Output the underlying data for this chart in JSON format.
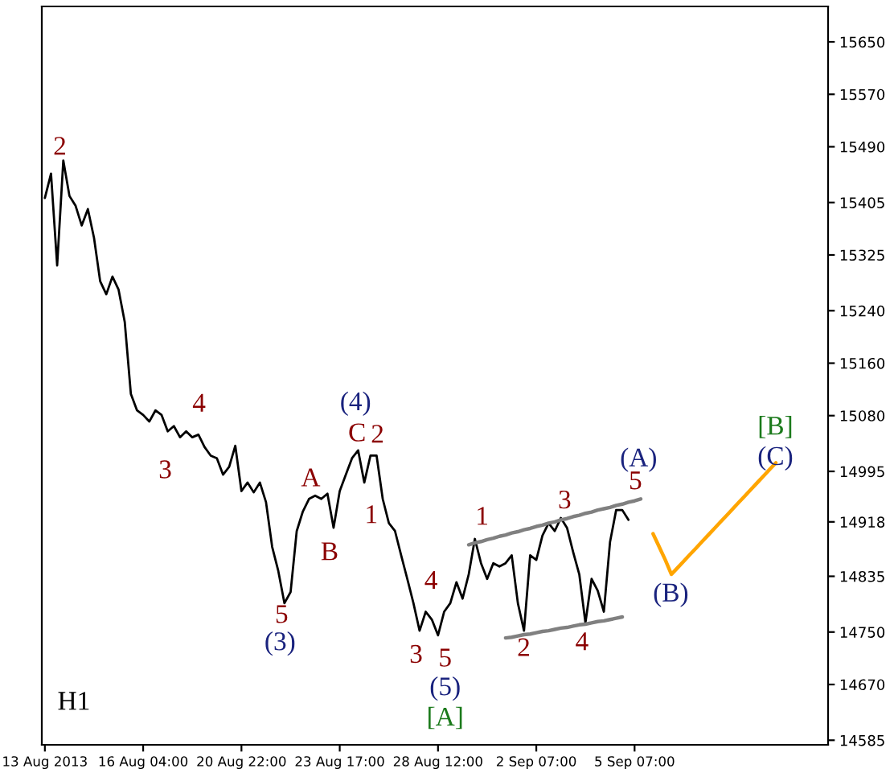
{
  "chart_data": {
    "type": "line",
    "categories": [
      "13 Aug 2013",
      null,
      null,
      null,
      null,
      null,
      null,
      null,
      null,
      null,
      null,
      null,
      null,
      null,
      null,
      null,
      "16 Aug 04:00",
      null,
      null,
      null,
      null,
      null,
      null,
      null,
      null,
      null,
      null,
      null,
      null,
      null,
      null,
      null,
      "20 Aug 22:00",
      null,
      null,
      null,
      null,
      null,
      null,
      null,
      null,
      null,
      null,
      null,
      null,
      null,
      null,
      null,
      "23 Aug 17:00",
      null,
      null,
      null,
      null,
      null,
      null,
      null,
      null,
      null,
      null,
      null,
      null,
      null,
      null,
      null,
      "28 Aug 12:00",
      null,
      null,
      null,
      null,
      null,
      null,
      null,
      null,
      null,
      null,
      null,
      null,
      null,
      null,
      null,
      "2 Sep 07:00",
      null,
      null,
      null,
      null,
      null,
      null,
      null,
      null,
      null,
      null,
      null,
      null,
      null,
      null,
      null,
      "5 Sep 07:00",
      null,
      null,
      null,
      null,
      null,
      null,
      null,
      null,
      null,
      null,
      null,
      null,
      null,
      null,
      null,
      null,
      null,
      null,
      null,
      null,
      null,
      null,
      null,
      null,
      null,
      null,
      null,
      null,
      null,
      null,
      null
    ],
    "ylim": [
      14578,
      15704
    ],
    "yticks": [
      14585,
      14670,
      14750,
      14835,
      14918,
      14995,
      15080,
      15160,
      15240,
      15325,
      15405,
      15490,
      15570,
      15650
    ],
    "grid": false,
    "series": [
      {
        "color": "#000000",
        "values": [
          15412,
          15449,
          15309,
          15469,
          15415,
          15400,
          15370,
          15395,
          15351,
          15285,
          15265,
          15292,
          15272,
          15223,
          15113,
          15088,
          15081,
          15071,
          15088,
          15081,
          15056,
          15064,
          15047,
          15056,
          15047,
          15051,
          15032,
          15019,
          15015,
          14990,
          15002,
          15034,
          14965,
          14978,
          14963,
          14978,
          14948,
          14880,
          14843,
          14794,
          14811,
          14904,
          14934,
          14953,
          14958,
          14953,
          14961,
          14909,
          14965,
          14990,
          15015,
          15027,
          14978,
          15019,
          15019,
          14953,
          14916,
          14904,
          14867,
          14831,
          14794,
          14752,
          14781,
          14769,
          14745,
          14781,
          14794,
          14826,
          14801,
          14838,
          14892,
          14855,
          14831,
          14855,
          14850,
          14855,
          14867,
          14794,
          14752,
          14867,
          14860,
          14897,
          14916,
          14904,
          14924,
          14909,
          14872,
          14838,
          14764,
          14831,
          14813,
          14781,
          14887,
          14936,
          14936,
          14921,
          null,
          null,
          null,
          null,
          null,
          null,
          null,
          null,
          null,
          null,
          null,
          null,
          null,
          null,
          null,
          null,
          null,
          null,
          null,
          null,
          null,
          null,
          null,
          null,
          null,
          null,
          null,
          null,
          null,
          null,
          null,
          null
        ]
      },
      {
        "color": "#808080",
        "values": [
          null,
          null,
          null,
          null,
          null,
          null,
          null,
          null,
          null,
          null,
          null,
          null,
          null,
          null,
          null,
          null,
          null,
          null,
          null,
          null,
          null,
          null,
          null,
          null,
          null,
          null,
          null,
          null,
          null,
          null,
          null,
          null,
          null,
          null,
          null,
          null,
          null,
          null,
          null,
          null,
          null,
          null,
          null,
          null,
          null,
          null,
          null,
          null,
          null,
          null,
          null,
          null,
          null,
          null,
          null,
          null,
          null,
          null,
          null,
          null,
          null,
          null,
          null,
          null,
          null,
          null,
          null,
          null,
          null,
          14883,
          14886,
          14888,
          14891,
          14893,
          14896,
          14898,
          14901,
          14903,
          14906,
          14908,
          14911,
          14913,
          14916,
          14918,
          14921,
          14923,
          14926,
          14928,
          14931,
          14933,
          14936,
          14938,
          14940,
          14943,
          14945,
          14948,
          14950,
          14953,
          null,
          null,
          null,
          null,
          null,
          null,
          null,
          null,
          null,
          null,
          null,
          null,
          null,
          null,
          null,
          null,
          null,
          null,
          null,
          null,
          null,
          null,
          null,
          null,
          null,
          null,
          null,
          null,
          null,
          null
        ]
      },
      {
        "color": "#808080",
        "values": [
          null,
          null,
          null,
          null,
          null,
          null,
          null,
          null,
          null,
          null,
          null,
          null,
          null,
          null,
          null,
          null,
          null,
          null,
          null,
          null,
          null,
          null,
          null,
          null,
          null,
          null,
          null,
          null,
          null,
          null,
          null,
          null,
          null,
          null,
          null,
          null,
          null,
          null,
          null,
          null,
          null,
          null,
          null,
          null,
          null,
          null,
          null,
          null,
          null,
          null,
          null,
          null,
          null,
          null,
          null,
          null,
          null,
          null,
          null,
          null,
          null,
          null,
          null,
          null,
          null,
          null,
          null,
          null,
          null,
          null,
          null,
          null,
          null,
          null,
          null,
          14741,
          14742,
          14744,
          14746,
          14747,
          14749,
          14751,
          14752,
          14754,
          14756,
          14757,
          14759,
          14761,
          14762,
          14764,
          14766,
          14767,
          14769,
          14771,
          14773,
          null,
          null,
          null,
          null,
          null,
          null,
          null,
          null,
          null,
          null,
          null,
          null,
          null,
          null,
          null,
          null,
          null,
          null,
          null,
          null,
          null,
          null,
          null,
          null,
          null,
          null,
          null,
          null,
          null,
          null,
          null,
          null,
          null
        ]
      },
      {
        "color": "#ffa500",
        "values": [
          null,
          null,
          null,
          null,
          null,
          null,
          null,
          null,
          null,
          null,
          null,
          null,
          null,
          null,
          null,
          null,
          null,
          null,
          null,
          null,
          null,
          null,
          null,
          null,
          null,
          null,
          null,
          null,
          null,
          null,
          null,
          null,
          null,
          null,
          null,
          null,
          null,
          null,
          null,
          null,
          null,
          null,
          null,
          null,
          null,
          null,
          null,
          null,
          null,
          null,
          null,
          null,
          null,
          null,
          null,
          null,
          null,
          null,
          null,
          null,
          null,
          null,
          null,
          null,
          null,
          null,
          null,
          null,
          null,
          null,
          null,
          null,
          null,
          null,
          null,
          null,
          null,
          null,
          null,
          null,
          null,
          null,
          null,
          null,
          null,
          null,
          null,
          null,
          null,
          null,
          null,
          null,
          null,
          null,
          null,
          null,
          null,
          null,
          null,
          14900,
          14880,
          14860,
          14838,
          14848,
          14858,
          14868,
          14878,
          14888,
          14898,
          14908,
          14918,
          14928,
          14938,
          14948,
          14958,
          14968,
          14978,
          14988,
          14998,
          15008,
          null,
          null,
          null,
          null,
          null,
          null,
          null,
          null
        ]
      }
    ],
    "annotations": [
      "H1",
      "2",
      "4",
      "3",
      "A",
      "B",
      "5",
      "(3)",
      "(4)",
      "C",
      "2",
      "1",
      "4",
      "3",
      "5",
      "(5)",
      "[A]",
      "1",
      "3",
      "2",
      "4",
      "5",
      "(A)",
      "(B)",
      "[B]",
      "(C)"
    ]
  }
}
